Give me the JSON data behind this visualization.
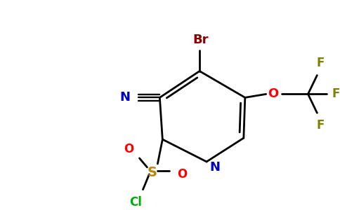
{
  "background_color": "#ffffff",
  "bond_color": "#000000",
  "atom_colors": {
    "Br": "#8b0000",
    "N_ring": "#0000cd",
    "N_cyano": "#0000cd",
    "O": "#ff0000",
    "S": "#b8860b",
    "Cl": "#00aa00",
    "F": "#808000",
    "C": "#000000"
  },
  "figsize": [
    4.84,
    3.0
  ],
  "dpi": 100
}
